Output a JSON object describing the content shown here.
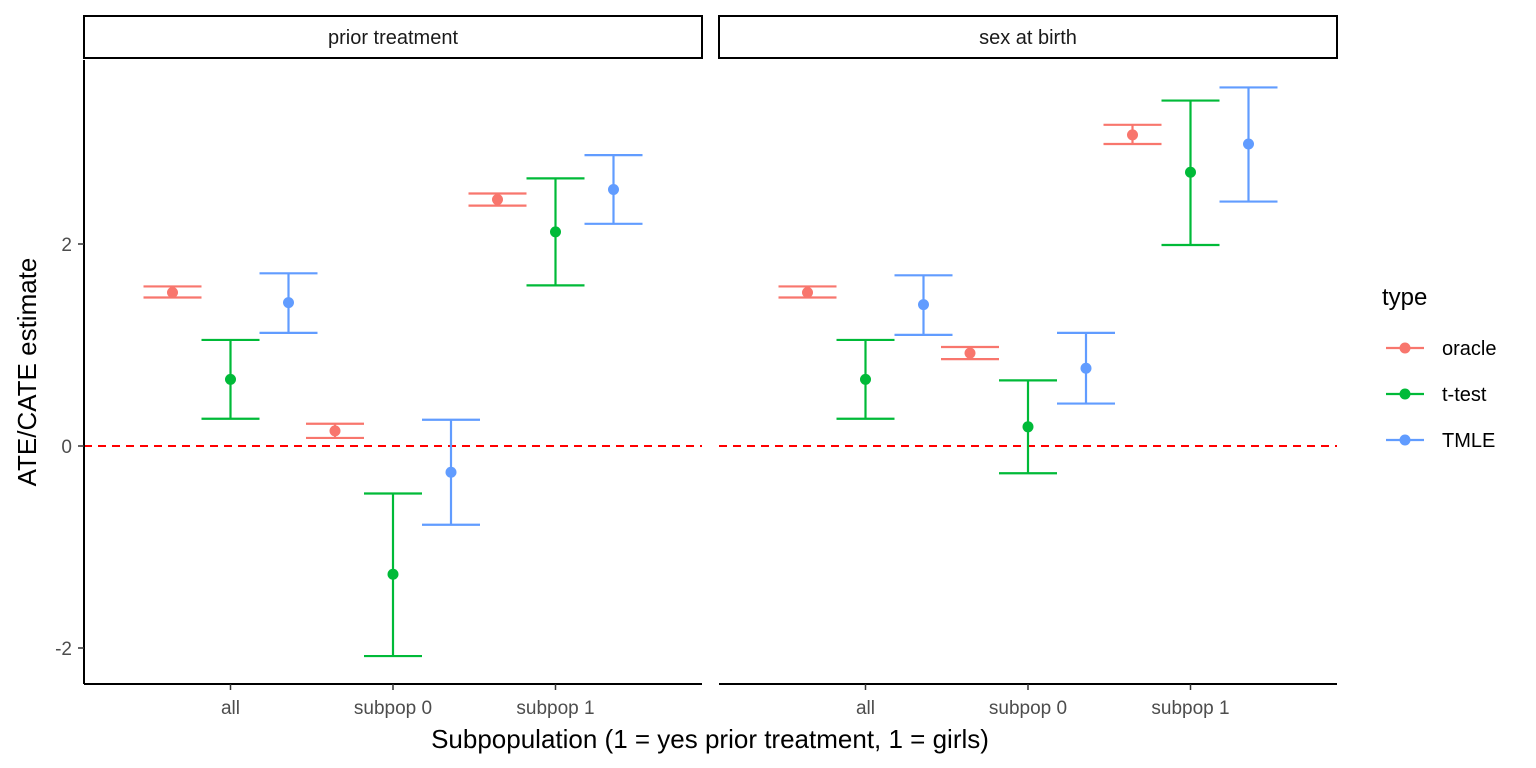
{
  "chart_data": {
    "type": "scatter",
    "subtype": "point-with-errorbars, faceted",
    "ylabel": "ATE/CATE estimate",
    "xlabel": "Subpopulation (1 = yes prior treatment, 1 = girls)",
    "ylim": [
      -2.35,
      3.85
    ],
    "yticks": [
      -2,
      0,
      2
    ],
    "ytick_labels": [
      "-2",
      "0",
      "2"
    ],
    "reference_line": {
      "y": 0,
      "style": "dashed",
      "color": "#ff0000"
    },
    "categories": [
      "all",
      "subpop 0",
      "subpop 1"
    ],
    "grid": false,
    "legend": {
      "title": "type",
      "position": "right",
      "entries": [
        {
          "name": "oracle",
          "color": "#F8766D"
        },
        {
          "name": "t-test",
          "color": "#00BA38"
        },
        {
          "name": "TMLE",
          "color": "#619CFF"
        }
      ]
    },
    "facets": [
      {
        "label": "prior treatment",
        "series": [
          {
            "name": "oracle",
            "color": "#F8766D",
            "points": [
              {
                "x": "all",
                "y": 1.52,
                "lo": 1.47,
                "hi": 1.58
              },
              {
                "x": "subpop 0",
                "y": 0.15,
                "lo": 0.08,
                "hi": 0.22
              },
              {
                "x": "subpop 1",
                "y": 2.44,
                "lo": 2.38,
                "hi": 2.5
              }
            ]
          },
          {
            "name": "t-test",
            "color": "#00BA38",
            "points": [
              {
                "x": "all",
                "y": 0.66,
                "lo": 0.27,
                "hi": 1.05
              },
              {
                "x": "subpop 0",
                "y": -1.27,
                "lo": -2.08,
                "hi": -0.47
              },
              {
                "x": "subpop 1",
                "y": 2.12,
                "lo": 1.59,
                "hi": 2.65
              }
            ]
          },
          {
            "name": "TMLE",
            "color": "#619CFF",
            "points": [
              {
                "x": "all",
                "y": 1.42,
                "lo": 1.12,
                "hi": 1.71
              },
              {
                "x": "subpop 0",
                "y": -0.26,
                "lo": -0.78,
                "hi": 0.26
              },
              {
                "x": "subpop 1",
                "y": 2.54,
                "lo": 2.2,
                "hi": 2.88
              }
            ]
          }
        ]
      },
      {
        "label": "sex at birth",
        "series": [
          {
            "name": "oracle",
            "color": "#F8766D",
            "points": [
              {
                "x": "all",
                "y": 1.52,
                "lo": 1.47,
                "hi": 1.58
              },
              {
                "x": "subpop 0",
                "y": 0.92,
                "lo": 0.86,
                "hi": 0.98
              },
              {
                "x": "subpop 1",
                "y": 3.08,
                "lo": 2.99,
                "hi": 3.18
              }
            ]
          },
          {
            "name": "t-test",
            "color": "#00BA38",
            "points": [
              {
                "x": "all",
                "y": 0.66,
                "lo": 0.27,
                "hi": 1.05
              },
              {
                "x": "subpop 0",
                "y": 0.19,
                "lo": -0.27,
                "hi": 0.65
              },
              {
                "x": "subpop 1",
                "y": 2.71,
                "lo": 1.99,
                "hi": 3.42
              }
            ]
          },
          {
            "name": "TMLE",
            "color": "#619CFF",
            "points": [
              {
                "x": "all",
                "y": 1.4,
                "lo": 1.1,
                "hi": 1.69
              },
              {
                "x": "subpop 0",
                "y": 0.77,
                "lo": 0.42,
                "hi": 1.12
              },
              {
                "x": "subpop 1",
                "y": 2.99,
                "lo": 2.42,
                "hi": 3.55
              }
            ]
          }
        ]
      }
    ]
  }
}
